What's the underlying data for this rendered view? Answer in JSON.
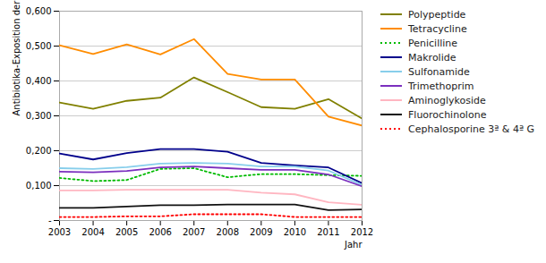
{
  "chart_data": {
    "type": "line",
    "ylabel": "Antibiotika-Exposition der Tiere",
    "xlabel": "Jahr",
    "x": [
      2003,
      2004,
      2005,
      2006,
      2007,
      2008,
      2009,
      2010,
      2011,
      2012
    ],
    "series": [
      {
        "name": "Polypeptide",
        "color": "#808000",
        "line_style": "solid",
        "values": [
          0.338,
          0.32,
          0.343,
          0.352,
          0.41,
          0.368,
          0.325,
          0.32,
          0.348,
          0.292
        ]
      },
      {
        "name": "Tetracycline",
        "color": "#FF8C00",
        "line_style": "solid",
        "values": [
          0.502,
          0.477,
          0.505,
          0.476,
          0.52,
          0.42,
          0.404,
          0.404,
          0.298,
          0.272
        ]
      },
      {
        "name": "Penicilline",
        "color": "#00BB00",
        "line_style": "dotted",
        "values": [
          0.122,
          0.113,
          0.116,
          0.148,
          0.15,
          0.124,
          0.133,
          0.133,
          0.13,
          0.128
        ]
      },
      {
        "name": "Makrolide",
        "color": "#00008B",
        "line_style": "solid",
        "values": [
          0.192,
          0.175,
          0.193,
          0.205,
          0.205,
          0.197,
          0.165,
          0.158,
          0.152,
          0.107
        ]
      },
      {
        "name": "Sulfonamide",
        "color": "#87CEEB",
        "line_style": "solid",
        "values": [
          0.15,
          0.148,
          0.153,
          0.163,
          0.165,
          0.163,
          0.155,
          0.155,
          0.143,
          0.102
        ]
      },
      {
        "name": "Trimethoprim",
        "color": "#7B2FBE",
        "line_style": "solid",
        "values": [
          0.14,
          0.138,
          0.142,
          0.152,
          0.155,
          0.15,
          0.145,
          0.145,
          0.132,
          0.098
        ]
      },
      {
        "name": "Aminoglykoside",
        "color": "#FFB6C1",
        "line_style": "solid",
        "values": [
          0.086,
          0.086,
          0.088,
          0.088,
          0.088,
          0.088,
          0.08,
          0.075,
          0.052,
          0.045
        ]
      },
      {
        "name": "Fluorochinolone",
        "color": "#111111",
        "line_style": "solid",
        "values": [
          0.036,
          0.036,
          0.04,
          0.044,
          0.044,
          0.046,
          0.046,
          0.046,
          0.03,
          0.032
        ]
      },
      {
        "name": "Cephalosporine 3ª & 4ª G",
        "color": "#FF0000",
        "line_style": "dotted",
        "values": [
          0.01,
          0.01,
          0.012,
          0.012,
          0.018,
          0.018,
          0.018,
          0.01,
          0.01,
          0.01
        ]
      }
    ],
    "xlim": [
      2003,
      2012
    ],
    "xticks": [
      2003,
      2004,
      2005,
      2006,
      2007,
      2008,
      2009,
      2010,
      2011,
      2012
    ],
    "ylim": [
      0,
      0.6
    ],
    "yticks": [
      {
        "value": 0.0,
        "label": "-"
      },
      {
        "value": 0.1,
        "label": "0,100"
      },
      {
        "value": 0.2,
        "label": "0,200"
      },
      {
        "value": 0.3,
        "label": "0,300"
      },
      {
        "value": 0.4,
        "label": "0,400"
      },
      {
        "value": 0.5,
        "label": "0,500"
      },
      {
        "value": 0.6,
        "label": "0,600"
      }
    ],
    "grid": true,
    "legend": "right"
  }
}
